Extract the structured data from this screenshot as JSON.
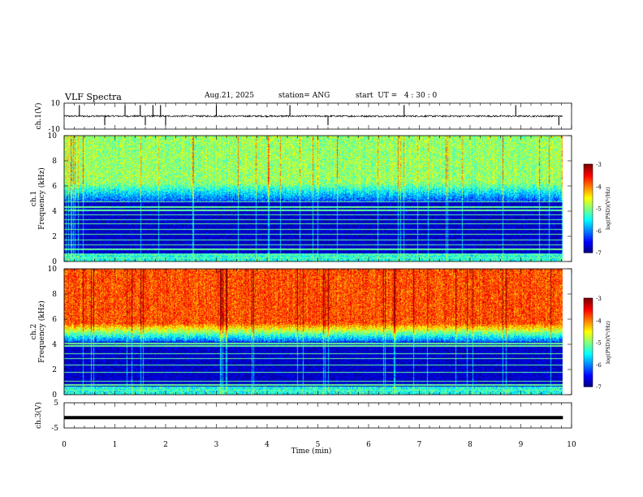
{
  "header": {
    "title": "VLF Spectra",
    "date": "Aug.21, 2025",
    "station": "station= ANG",
    "start": "start  UT =   4 : 30 : 0"
  },
  "chart_data": {
    "type": "heatmap",
    "x_axis": {
      "label": "Time  (min)",
      "range": [
        0,
        10
      ],
      "ticks": [
        "0",
        "1",
        "2",
        "3",
        "4",
        "5",
        "6",
        "7",
        "8",
        "9",
        "10"
      ],
      "data_end_min": 9.83
    },
    "panels": [
      {
        "id": "ch1_waveform",
        "type": "line",
        "ylabel": "ch.1(V)",
        "ylim": [
          -10,
          10
        ],
        "ytick_labels": [
          "10",
          "-10"
        ],
        "baseline_v": 0.0,
        "spike_times_min": [
          0.3,
          0.8,
          1.2,
          1.5,
          1.6,
          1.75,
          1.9,
          2.0,
          3.0,
          4.45,
          5.2,
          6.7,
          8.9,
          9.75
        ]
      },
      {
        "id": "ch1_spectrogram",
        "type": "heatmap",
        "label": "ch.1",
        "ylabel": "Frequency  (kHz)",
        "ylim": [
          0,
          10
        ],
        "ytick_labels": [
          "0",
          "2",
          "4",
          "6",
          "8",
          "10"
        ],
        "colorbar": {
          "label": "log(PSD)(V²/Hz)",
          "range": [
            -7,
            -3
          ],
          "tick_labels": [
            "-3",
            "-4",
            "-5",
            "-6",
            "-7"
          ]
        },
        "noise_onset_khz": 4.8,
        "high_band_level": -4.9,
        "narrowband_lines_khz": [
          0.3,
          0.6,
          1.0,
          1.35,
          1.75,
          2.2,
          2.6,
          3.05,
          3.35,
          3.75,
          4.1,
          4.35,
          4.75
        ]
      },
      {
        "id": "ch2_spectrogram",
        "type": "heatmap",
        "label": "ch.2",
        "ylabel": "Frequency  (kHz)",
        "ylim": [
          0,
          10
        ],
        "ytick_labels": [
          "0",
          "2",
          "4",
          "6",
          "8",
          "10"
        ],
        "colorbar": {
          "label": "log(PSD)(V²/Hz)",
          "range": [
            -7,
            -3
          ],
          "tick_labels": [
            "-3",
            "-4",
            "-5",
            "-6",
            "-7"
          ]
        },
        "noise_onset_khz": 4.2,
        "high_band_level": -3.8,
        "narrowband_lines_khz": [
          0.4,
          0.8,
          1.1,
          1.8,
          2.4,
          2.9,
          3.3,
          3.9,
          4.1
        ]
      },
      {
        "id": "ch3_waveform",
        "type": "line",
        "ylabel": "ch.3(V)",
        "ylim": [
          -5,
          5
        ],
        "ytick_labels": [
          "5",
          "-5"
        ],
        "baseline_v": -0.9
      }
    ]
  }
}
